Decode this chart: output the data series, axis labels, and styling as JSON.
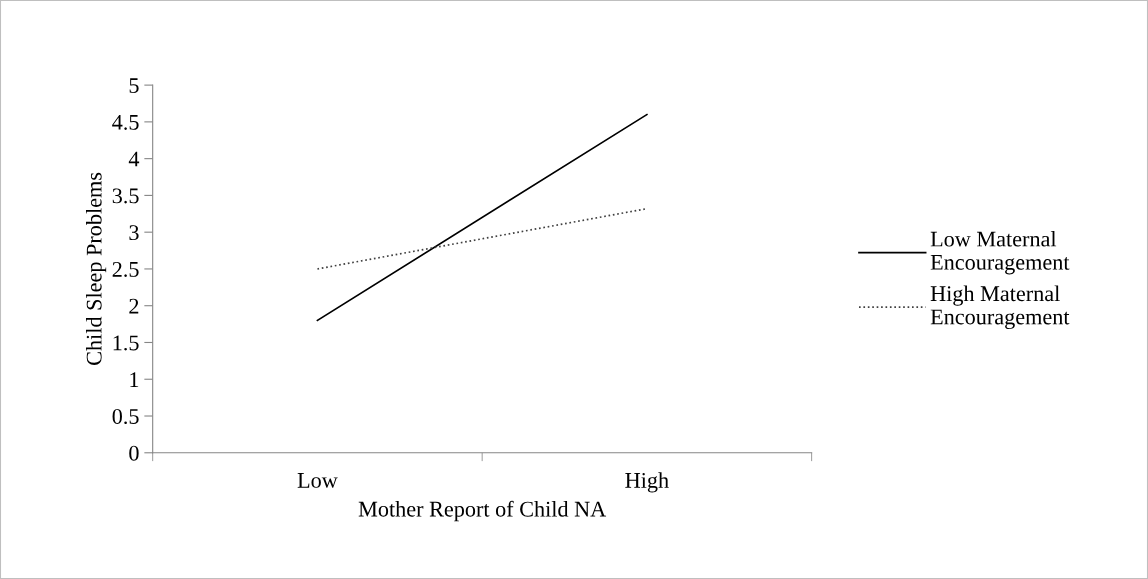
{
  "chart_data": {
    "type": "line",
    "xlabel": "Mother Report of Child NA",
    "ylabel": "Child Sleep Problems",
    "categories": [
      "Low",
      "High"
    ],
    "series": [
      {
        "name": "Low Maternal Encouragement",
        "color": "#000000",
        "values": [
          1.8,
          4.6
        ],
        "line_style": "solid"
      },
      {
        "name": "High Maternal Encouragement",
        "color": "#404040",
        "values": [
          2.5,
          3.32
        ],
        "line_style": "dotted"
      }
    ],
    "ylim": [
      0,
      5
    ],
    "yticks": [
      0,
      0.5,
      1,
      1.5,
      2,
      2.5,
      3,
      3.5,
      4,
      4.5,
      5
    ],
    "grid": false,
    "legend": "right",
    "marker": "none"
  }
}
